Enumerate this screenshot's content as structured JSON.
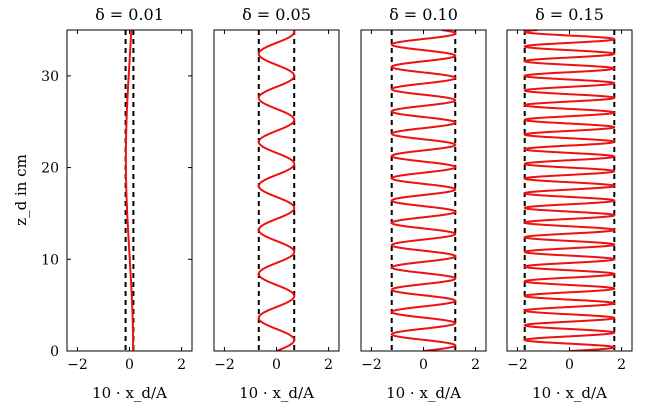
{
  "figure": {
    "ylabel": "z_d in cm",
    "xlabel": "10 · x_d/A",
    "panel_titles": [
      "δ = 0.01",
      "δ = 0.05",
      "δ = 0.10",
      "δ = 0.15"
    ]
  },
  "chart_data": [
    {
      "type": "line",
      "title": "δ = 0.01",
      "xlabel": "10 · x_d/A",
      "ylabel": "z_d in cm",
      "xlim": [
        -2.4,
        2.4
      ],
      "ylim": [
        0,
        35
      ],
      "xticks": [
        -2,
        0,
        2
      ],
      "yticks": [
        0,
        10,
        20,
        30
      ],
      "bounds": [
        -0.15,
        0.15
      ],
      "wave": {
        "amplitude": 0.14,
        "wavelength": 42,
        "phase_deg": 90
      },
      "series_color": "#ee1111",
      "bound_color": "#000000",
      "grid": false
    },
    {
      "type": "line",
      "title": "δ = 0.05",
      "xlabel": "10 · x_d/A",
      "ylabel": "",
      "xlim": [
        -2.4,
        2.4
      ],
      "ylim": [
        0,
        35
      ],
      "xticks": [
        -2,
        0,
        2
      ],
      "yticks": [],
      "bounds": [
        -0.68,
        0.68
      ],
      "wave": {
        "amplitude": 0.68,
        "wavelength": 4.8,
        "phase_deg": 0
      },
      "series_color": "#ee1111",
      "bound_color": "#000000",
      "grid": false
    },
    {
      "type": "line",
      "title": "δ = 0.10",
      "xlabel": "10 · x_d/A",
      "ylabel": "",
      "xlim": [
        -2.4,
        2.4
      ],
      "ylim": [
        0,
        35
      ],
      "xticks": [
        -2,
        0,
        2
      ],
      "yticks": [],
      "bounds": [
        -1.22,
        1.22
      ],
      "wave": {
        "amplitude": 1.22,
        "wavelength": 2.43,
        "phase_deg": 0
      },
      "series_color": "#ee1111",
      "bound_color": "#000000",
      "grid": false
    },
    {
      "type": "line",
      "title": "δ = 0.15",
      "xlabel": "10 · x_d/A",
      "ylabel": "",
      "xlim": [
        -2.4,
        2.4
      ],
      "ylim": [
        0,
        35
      ],
      "xticks": [
        -2,
        0,
        2
      ],
      "yticks": [],
      "bounds": [
        -1.72,
        1.72
      ],
      "wave": {
        "amplitude": 1.72,
        "wavelength": 1.6,
        "phase_deg": 0
      },
      "series_color": "#ee1111",
      "bound_color": "#000000",
      "grid": false
    }
  ]
}
